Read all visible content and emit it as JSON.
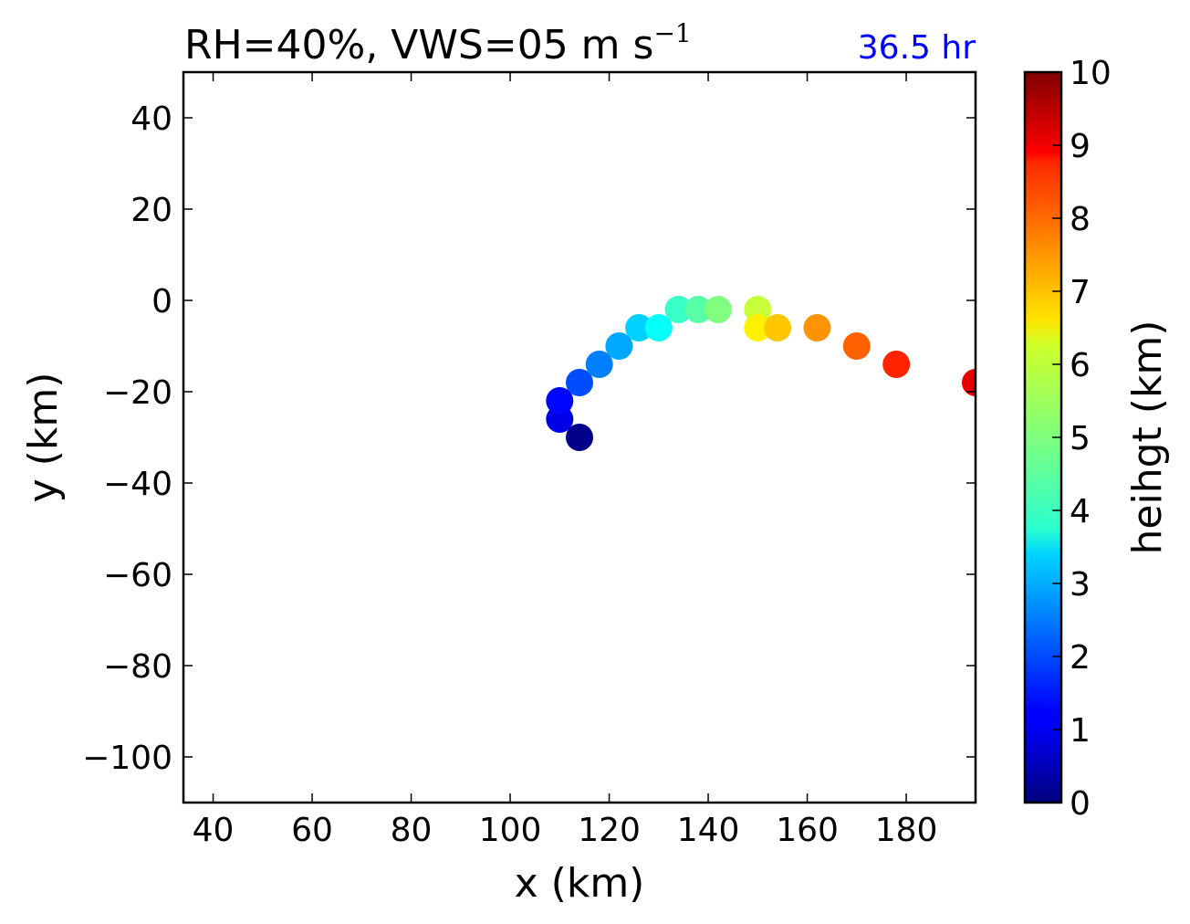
{
  "chart_data": {
    "type": "scatter",
    "title": "RH=40%, VWS=05 m s",
    "title_superscript": "−1",
    "time_label": "36.5 hr",
    "time_label_color": "#0000ff",
    "xlabel": "x (km)",
    "ylabel": "y (km)",
    "xlim": [
      34,
      194
    ],
    "ylim": [
      -110,
      50
    ],
    "xticks": [
      40,
      60,
      80,
      100,
      120,
      140,
      160,
      180
    ],
    "yticks": [
      40,
      20,
      0,
      -20,
      -40,
      -60,
      -80,
      -100
    ],
    "ytick_labels": [
      "40",
      "20",
      "0",
      "−20",
      "−40",
      "−60",
      "−80",
      "−100"
    ],
    "grid": false,
    "colormap": "jet",
    "colorbar": {
      "label": "heihgt (km)",
      "range": [
        0,
        10
      ],
      "ticks": [
        0,
        1,
        2,
        3,
        4,
        5,
        6,
        7,
        8,
        9,
        10
      ]
    },
    "points": [
      {
        "x": 114,
        "y": -30,
        "height": 0.1
      },
      {
        "x": 110,
        "y": -26,
        "height": 1.0
      },
      {
        "x": 110,
        "y": -22,
        "height": 1.3
      },
      {
        "x": 114,
        "y": -18,
        "height": 2.0
      },
      {
        "x": 118,
        "y": -14,
        "height": 2.5
      },
      {
        "x": 122,
        "y": -10,
        "height": 2.9
      },
      {
        "x": 126,
        "y": -6,
        "height": 3.3
      },
      {
        "x": 130,
        "y": -6,
        "height": 3.8
      },
      {
        "x": 134,
        "y": -2,
        "height": 4.3
      },
      {
        "x": 138,
        "y": -2,
        "height": 4.6
      },
      {
        "x": 142,
        "y": -2,
        "height": 5.0
      },
      {
        "x": 150,
        "y": -2,
        "height": 5.7
      },
      {
        "x": 150,
        "y": -6,
        "height": 6.4
      },
      {
        "x": 154,
        "y": -6,
        "height": 6.8
      },
      {
        "x": 162,
        "y": -6,
        "height": 7.3
      },
      {
        "x": 170,
        "y": -10,
        "height": 7.8
      },
      {
        "x": 178,
        "y": -14,
        "height": 8.4
      },
      {
        "x": 194,
        "y": -18,
        "height": 9.0
      }
    ]
  }
}
